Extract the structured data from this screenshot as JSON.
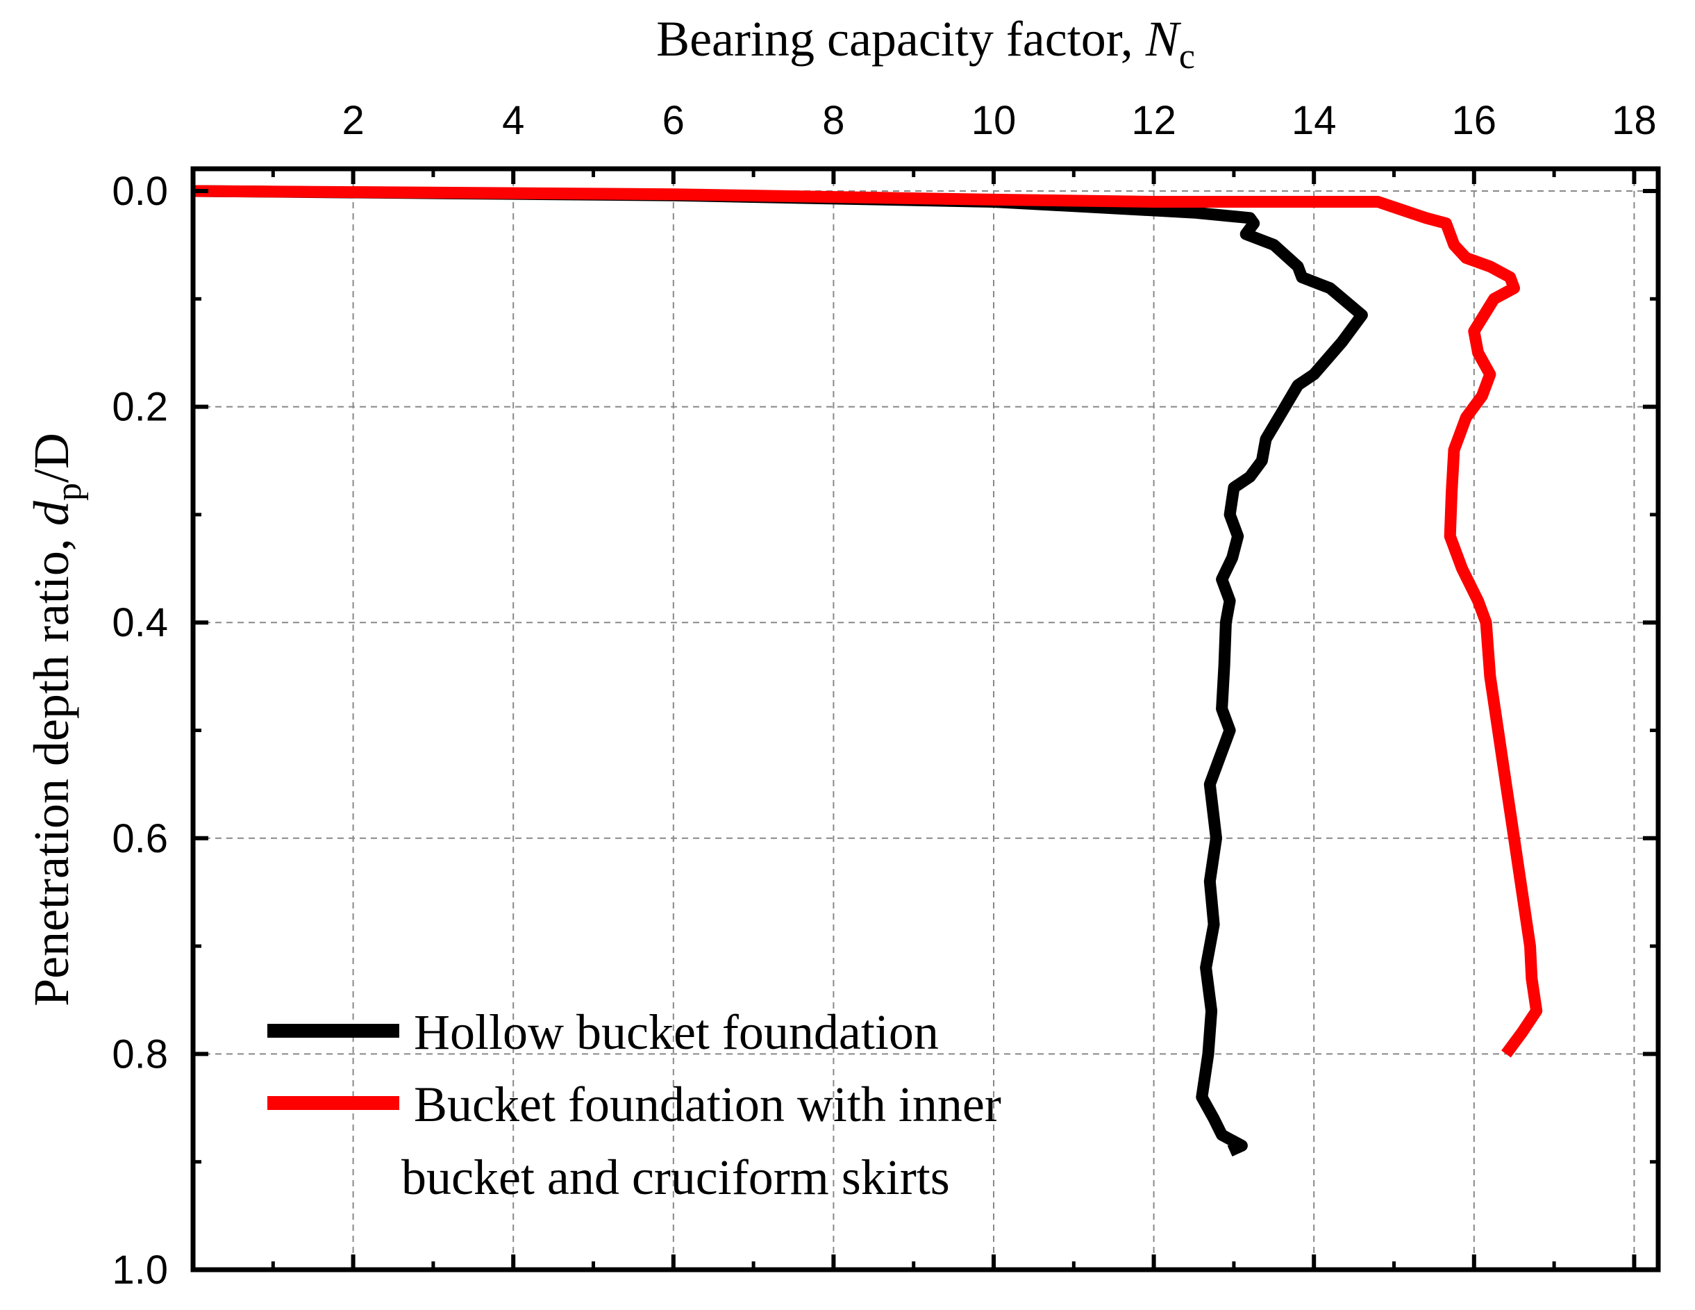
{
  "chart_data": {
    "type": "line",
    "xlabel": {
      "text": "Bearing capacity factor, ",
      "symbol": "N",
      "subscript": "c"
    },
    "ylabel": {
      "text": "Penetration depth ratio, ",
      "symbol": "d",
      "subscript": "p",
      "suffix": "/D"
    },
    "xlim": [
      0,
      18.3
    ],
    "ylim": [
      0,
      1.0
    ],
    "x_axis_position": "top",
    "y_axis_inverted": true,
    "grid": true,
    "x_ticks": [
      2,
      4,
      6,
      8,
      10,
      12,
      14,
      16,
      18
    ],
    "x_tick_labels": [
      "2",
      "4",
      "6",
      "8",
      "10",
      "12",
      "14",
      "16",
      "18"
    ],
    "y_ticks": [
      0.0,
      0.2,
      0.4,
      0.6,
      0.8,
      1.0
    ],
    "y_tick_labels": [
      "0.0",
      "0.2",
      "0.4",
      "0.6",
      "0.8",
      "1.0"
    ],
    "legend": {
      "position": "bottom-left",
      "entries": [
        {
          "lines": [
            "Hollow bucket foundation"
          ],
          "color": "#000000"
        },
        {
          "lines": [
            "Bucket foundation with inner",
            "bucket and cruciform skirts"
          ],
          "color": "#ff0000"
        }
      ]
    },
    "series": [
      {
        "color": "#000000",
        "points": [
          [
            0.0,
            0.0
          ],
          [
            6.0,
            0.004
          ],
          [
            10.0,
            0.01
          ],
          [
            12.5,
            0.02
          ],
          [
            13.2,
            0.025
          ],
          [
            13.25,
            0.03
          ],
          [
            13.15,
            0.04
          ],
          [
            13.5,
            0.05
          ],
          [
            13.8,
            0.07
          ],
          [
            13.85,
            0.08
          ],
          [
            14.2,
            0.09
          ],
          [
            14.6,
            0.115
          ],
          [
            14.35,
            0.14
          ],
          [
            14.0,
            0.17
          ],
          [
            13.8,
            0.18
          ],
          [
            13.6,
            0.205
          ],
          [
            13.4,
            0.23
          ],
          [
            13.35,
            0.25
          ],
          [
            13.2,
            0.265
          ],
          [
            13.0,
            0.275
          ],
          [
            12.95,
            0.3
          ],
          [
            13.05,
            0.32
          ],
          [
            12.98,
            0.34
          ],
          [
            12.85,
            0.36
          ],
          [
            12.95,
            0.38
          ],
          [
            12.9,
            0.4
          ],
          [
            12.88,
            0.44
          ],
          [
            12.85,
            0.48
          ],
          [
            12.95,
            0.5
          ],
          [
            12.8,
            0.53
          ],
          [
            12.7,
            0.55
          ],
          [
            12.78,
            0.6
          ],
          [
            12.7,
            0.64
          ],
          [
            12.75,
            0.68
          ],
          [
            12.65,
            0.72
          ],
          [
            12.72,
            0.76
          ],
          [
            12.68,
            0.8
          ],
          [
            12.6,
            0.84
          ],
          [
            12.75,
            0.86
          ],
          [
            12.85,
            0.875
          ],
          [
            13.1,
            0.885
          ],
          [
            12.95,
            0.89
          ]
        ]
      },
      {
        "color": "#ff0000",
        "points": [
          [
            0.0,
            0.0
          ],
          [
            6.0,
            0.003
          ],
          [
            10.0,
            0.008
          ],
          [
            12.0,
            0.01
          ],
          [
            13.5,
            0.01
          ],
          [
            14.8,
            0.01
          ],
          [
            15.0,
            0.015
          ],
          [
            15.4,
            0.025
          ],
          [
            15.65,
            0.03
          ],
          [
            15.75,
            0.05
          ],
          [
            15.9,
            0.062
          ],
          [
            16.2,
            0.07
          ],
          [
            16.45,
            0.08
          ],
          [
            16.5,
            0.09
          ],
          [
            16.25,
            0.1
          ],
          [
            16.0,
            0.13
          ],
          [
            16.05,
            0.15
          ],
          [
            16.2,
            0.17
          ],
          [
            16.1,
            0.19
          ],
          [
            15.9,
            0.21
          ],
          [
            15.75,
            0.24
          ],
          [
            15.72,
            0.28
          ],
          [
            15.7,
            0.32
          ],
          [
            15.85,
            0.35
          ],
          [
            16.05,
            0.38
          ],
          [
            16.15,
            0.4
          ],
          [
            16.2,
            0.45
          ],
          [
            16.3,
            0.5
          ],
          [
            16.4,
            0.55
          ],
          [
            16.5,
            0.6
          ],
          [
            16.6,
            0.65
          ],
          [
            16.7,
            0.7
          ],
          [
            16.72,
            0.73
          ],
          [
            16.78,
            0.76
          ],
          [
            16.6,
            0.78
          ],
          [
            16.4,
            0.8
          ]
        ]
      }
    ]
  }
}
